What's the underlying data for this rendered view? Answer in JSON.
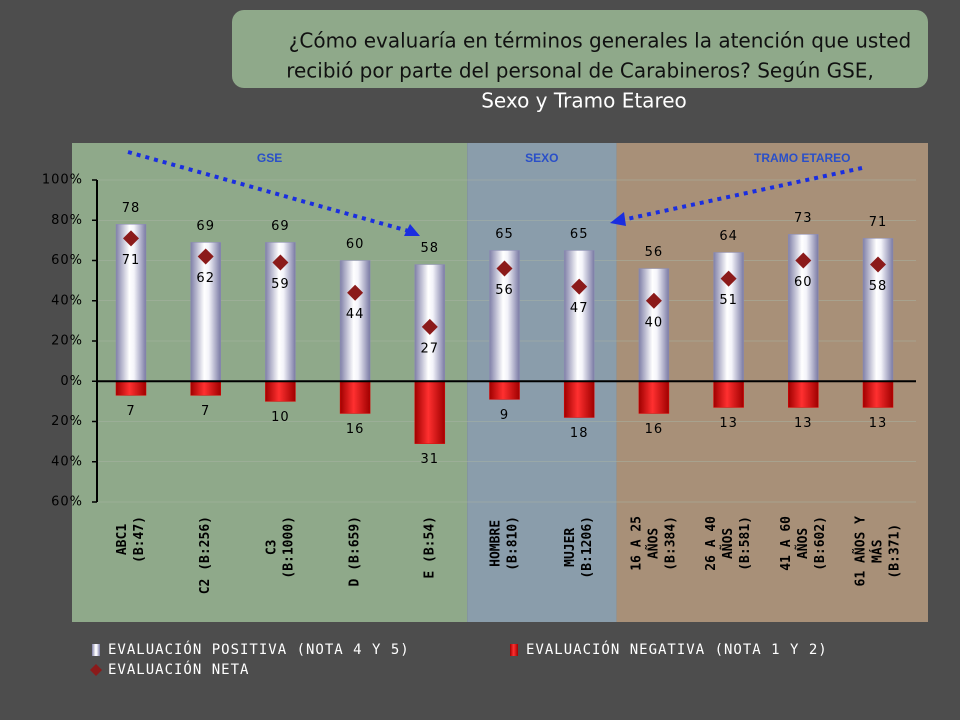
{
  "chart_data": {
    "type": "bar",
    "title": [
      "¿Cómo evaluaría en términos generales la atención que usted",
      "recibió por parte del personal de Carabineros? Según GSE,",
      "Sexo y Tramo Etareo"
    ],
    "groups": [
      {
        "name": "GSE",
        "span": 5,
        "color": "#8fa98a"
      },
      {
        "name": "SEXO",
        "span": 2,
        "color": "#8a9dab"
      },
      {
        "name": "TRAMO ETAREO",
        "span": 4,
        "color": "#a89078"
      }
    ],
    "categories": [
      [
        "ABC1",
        "(B:47)"
      ],
      [
        "C2 (B:256)"
      ],
      [
        "C3",
        "(B:1000)"
      ],
      [
        "D (B:659)"
      ],
      [
        "E (B:54)"
      ],
      [
        "HOMBRE",
        "(B:810)"
      ],
      [
        "MUJER",
        "(B:1206)"
      ],
      [
        "16 A 25",
        "AÑOS",
        "(B:384)"
      ],
      [
        "26 A 40",
        "AÑOS",
        "(B:581)"
      ],
      [
        "41 A 60",
        "AÑOS",
        "(B:602)"
      ],
      [
        "61 AÑOS Y",
        "MÁS",
        "(B:371)"
      ]
    ],
    "series": [
      {
        "name": "EVALUACIÓN POSITIVA (NOTA 4 Y 5)",
        "color": "#8c8cb4",
        "values": [
          78,
          69,
          69,
          60,
          58,
          65,
          65,
          56,
          64,
          73,
          71
        ]
      },
      {
        "name": "EVALUACIÓN NEGATIVA (NOTA 1 Y 2)",
        "color": "#e00000",
        "values": [
          -7,
          -7,
          -10,
          -16,
          -31,
          -9,
          -18,
          -16,
          -13,
          -13,
          -13
        ],
        "value_labels": [
          "7",
          "7",
          "10",
          "16",
          "31",
          "9",
          "18",
          "16",
          "13",
          "13",
          "13"
        ]
      },
      {
        "name": "EVALUACIÓN NETA",
        "color": "#8b1a1a",
        "values": [
          71,
          62,
          59,
          44,
          27,
          56,
          47,
          40,
          51,
          60,
          58
        ]
      }
    ],
    "ylim": [
      -60,
      100
    ],
    "yticks": [
      {
        "value": -60,
        "label": "60%"
      },
      {
        "value": -40,
        "label": "40%"
      },
      {
        "value": -20,
        "label": "20%"
      },
      {
        "value": 0,
        "label": "0%"
      },
      {
        "value": 20,
        "label": "20%"
      },
      {
        "value": 40,
        "label": "40%"
      },
      {
        "value": 60,
        "label": "60%"
      },
      {
        "value": 80,
        "label": "80%"
      },
      {
        "value": 100,
        "label": "100%"
      }
    ],
    "grid": true
  }
}
